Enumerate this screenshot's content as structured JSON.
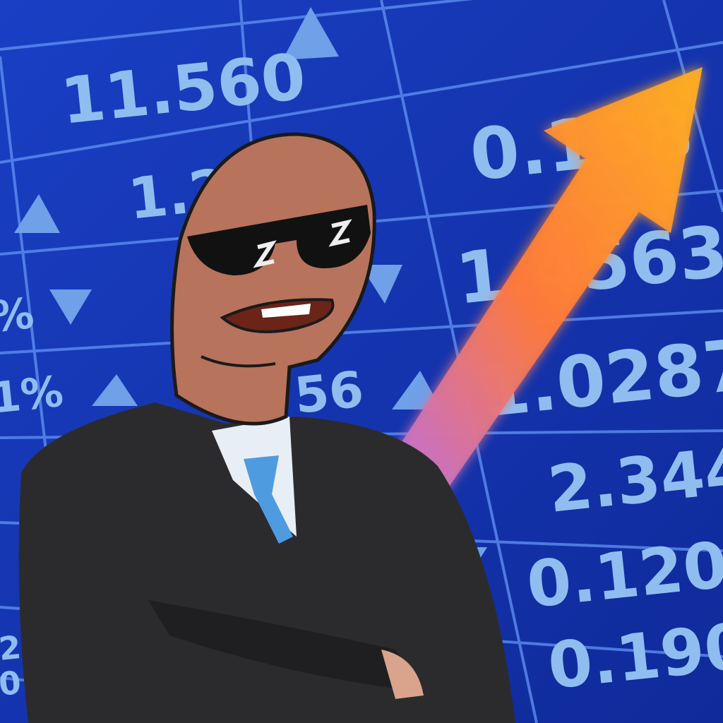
{
  "board": {
    "labels": [
      "11.560",
      "1.29",
      "0.168",
      "1.4563",
      "1.0287",
      "2.344",
      "0.120",
      "0.190",
      "56",
      "1%",
      "%",
      "213",
      "0.277"
    ]
  }
}
